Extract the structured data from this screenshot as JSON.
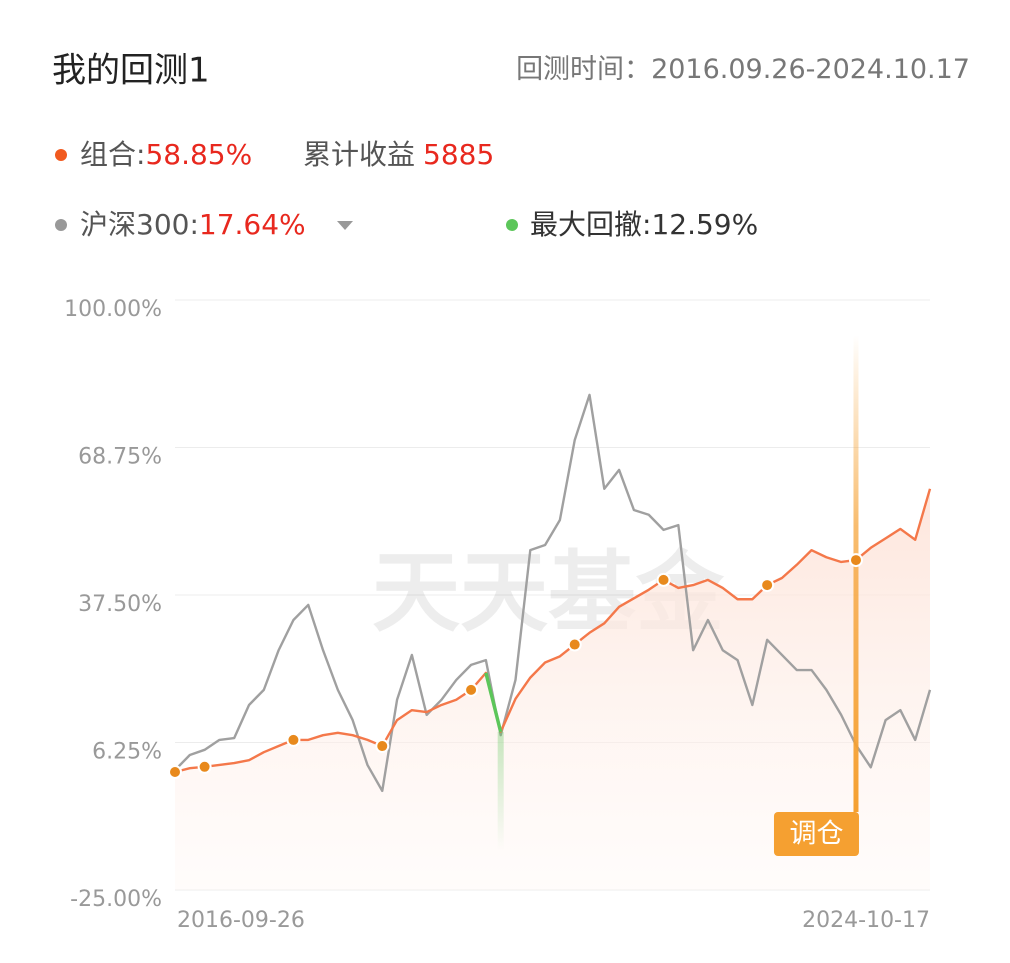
{
  "header": {
    "title": "我的回测1",
    "period_label": "回测时间：",
    "period": "2016.09.26-2024.10.17"
  },
  "legend_separator": ":",
  "summary": {
    "portfolio_return": "58.85%",
    "cumulative_label": "累计收益",
    "cumulative_value": "5885",
    "benchmark_return": "17.64%",
    "drawdown_label": "最大回撤",
    "drawdown_value": "12.59%"
  },
  "watermark": "天天基金",
  "chart_data": {
    "type": "line",
    "categories": [
      "2016-09-26",
      null,
      null,
      null,
      null,
      null,
      null,
      null,
      null,
      null,
      null,
      null,
      null,
      null,
      null,
      null,
      null,
      null,
      null,
      null,
      null,
      null,
      null,
      null,
      null,
      null,
      null,
      null,
      null,
      null,
      null,
      null,
      null,
      null,
      null,
      null,
      null,
      null,
      null,
      null,
      null,
      null,
      null,
      null,
      null,
      null,
      null,
      null,
      null,
      null,
      null,
      "2024-10-17"
    ],
    "series": [
      {
        "name": "组合",
        "color": "#f4784a",
        "values": [
          0,
          0.8,
          1.1,
          1.5,
          1.9,
          2.5,
          4.2,
          5.5,
          6.8,
          6.8,
          7.8,
          8.3,
          7.8,
          6.8,
          5.5,
          11.0,
          13.1,
          12.7,
          14.2,
          15.3,
          17.4,
          21.0,
          8.5,
          15.5,
          20.0,
          23.2,
          24.5,
          27.0,
          29.5,
          31.5,
          35.0,
          36.8,
          38.6,
          40.7,
          39.0,
          39.6,
          40.7,
          39.0,
          36.6,
          36.6,
          39.6,
          41.1,
          43.9,
          47.0,
          45.5,
          44.5,
          44.9,
          47.5,
          49.5,
          51.5,
          49.2,
          60.0
        ]
      },
      {
        "name": "沪深300",
        "color": "#a0a0a0",
        "values": [
          0.4,
          3.6,
          4.7,
          6.8,
          7.2,
          14.2,
          17.4,
          25.8,
          32.2,
          35.4,
          25.8,
          17.4,
          11.0,
          1.5,
          -4.0,
          15.3,
          24.8,
          12.1,
          15.3,
          19.5,
          22.7,
          23.7,
          7.8,
          19.5,
          47.0,
          48.1,
          53.4,
          70.3,
          79.9,
          60.0,
          64.0,
          55.5,
          54.5,
          51.3,
          52.3,
          25.8,
          32.2,
          25.8,
          23.7,
          14.2,
          28.0,
          24.8,
          21.6,
          21.6,
          17.4,
          12.1,
          5.7,
          1.0,
          11.0,
          13.1,
          6.8,
          17.4
        ]
      }
    ],
    "drawdown_color": "#5cc65a",
    "drawdown_range": [
      21,
      22
    ],
    "rebalance_color": "#e8891c",
    "rebalance_points": [
      0,
      2,
      8,
      14,
      20,
      27,
      33,
      40,
      46
    ],
    "annotation": {
      "text": "调仓",
      "index": 46,
      "color": "#f5a031"
    },
    "ylim": [
      -25,
      100
    ],
    "yticks": [
      {
        "value": -25,
        "label": "-25.00%"
      },
      {
        "value": 6.25,
        "label": "6.25%"
      },
      {
        "value": 37.5,
        "label": "37.50%"
      },
      {
        "value": 68.75,
        "label": "68.75%"
      },
      {
        "value": 100,
        "label": "100.00%"
      }
    ],
    "grid": true
  }
}
